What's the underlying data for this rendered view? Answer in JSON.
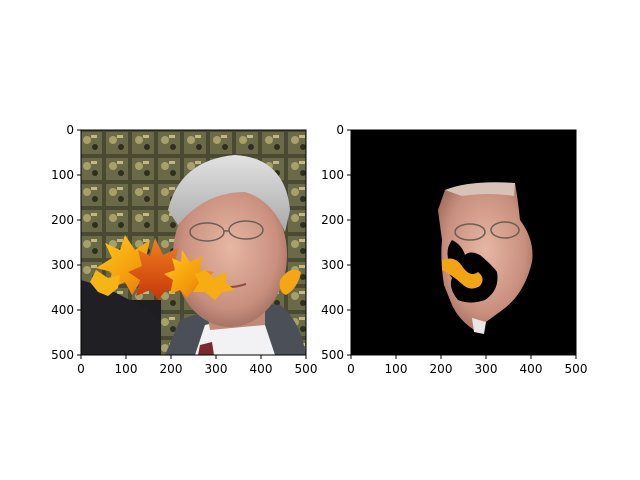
{
  "chart_data": [
    {
      "type": "image",
      "content": "photo of a gray-haired man in a suit with glasses; autumn maple leaves overlaid across the lower face",
      "xlim": [
        0,
        500
      ],
      "ylim": [
        500,
        0
      ],
      "xticks": [
        0,
        100,
        200,
        300,
        400,
        500
      ],
      "yticks": [
        0,
        100,
        200,
        300,
        400,
        500
      ]
    },
    {
      "type": "image",
      "content": "face segmentation mask: only the face region visible on black background, with black holes where leaves occlude",
      "xlim": [
        0,
        500
      ],
      "ylim": [
        500,
        0
      ],
      "xticks": [
        0,
        100,
        200,
        300,
        400,
        500
      ],
      "yticks": [
        0,
        100,
        200,
        300,
        400,
        500
      ]
    }
  ]
}
